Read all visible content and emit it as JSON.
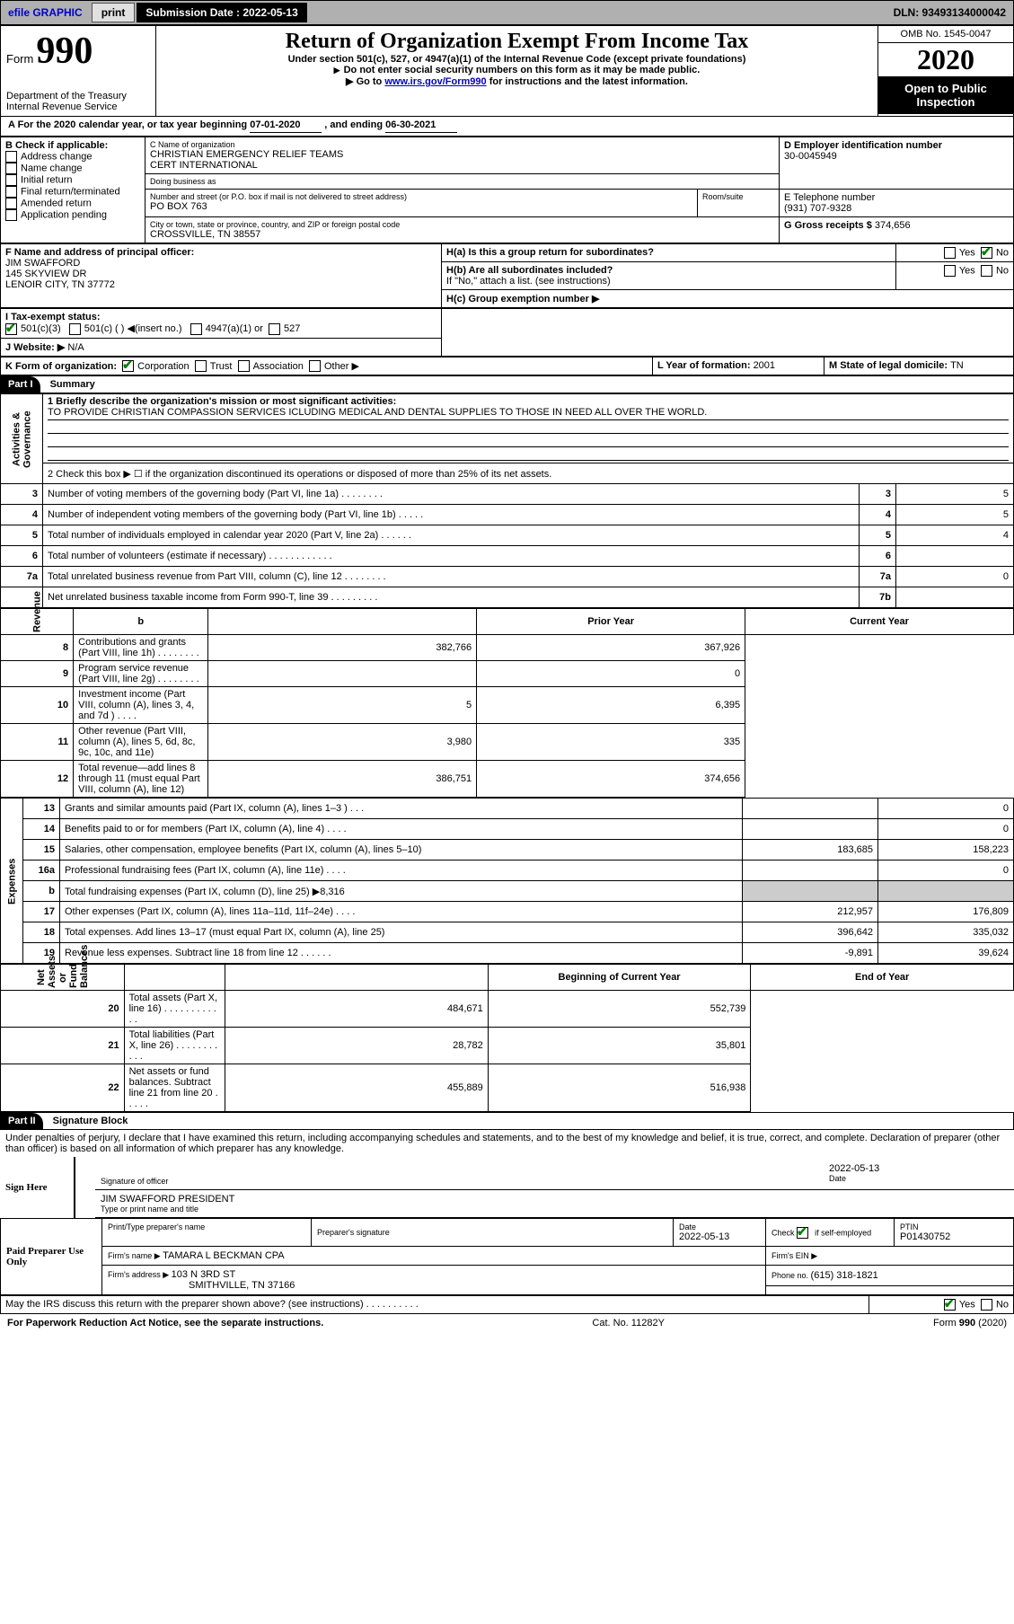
{
  "topbar": {
    "efile": "efile GRAPHIC",
    "print": "print",
    "sub_label": "Submission Date : 2022-05-13",
    "dln": "DLN: 93493134000042"
  },
  "header": {
    "form_word": "Form",
    "form_num": "990",
    "dept": "Department of the Treasury\nInternal Revenue Service",
    "title": "Return of Organization Exempt From Income Tax",
    "subtitle": "Under section 501(c), 527, or 4947(a)(1) of the Internal Revenue Code (except private foundations)",
    "note1": "Do not enter social security numbers on this form as it may be made public.",
    "note2_pre": "Go to ",
    "note2_link": "www.irs.gov/Form990",
    "note2_post": " for instructions and the latest information.",
    "omb": "OMB No. 1545-0047",
    "year": "2020",
    "open": "Open to Public Inspection"
  },
  "rowA": {
    "text_pre": "A For the 2020 calendar year, or tax year beginning ",
    "begin": "07-01-2020",
    "mid": " , and ending ",
    "end": "06-30-2021"
  },
  "boxB": {
    "label": "B Check if applicable:",
    "addr": "Address change",
    "name": "Name change",
    "init": "Initial return",
    "final": "Final return/terminated",
    "amend": "Amended return",
    "app": "Application pending"
  },
  "boxC": {
    "label": "C Name of organization",
    "name": "CHRISTIAN EMERGENCY RELIEF TEAMS\nCERT INTERNATIONAL",
    "dba_label": "Doing business as",
    "dba": "",
    "street_label": "Number and street (or P.O. box if mail is not delivered to street address)",
    "room_label": "Room/suite",
    "street": "PO BOX 763",
    "city_label": "City or town, state or province, country, and ZIP or foreign postal code",
    "city": "CROSSVILLE, TN  38557"
  },
  "boxD": {
    "label": "D Employer identification number",
    "val": "30-0045949"
  },
  "boxE": {
    "label": "E Telephone number",
    "val": "(931) 707-9328"
  },
  "boxG": {
    "label": "G Gross receipts $ ",
    "val": "374,656"
  },
  "boxF": {
    "label": "F Name and address of principal officer:",
    "name": "JIM SWAFFORD",
    "addr1": "145 SKYVIEW DR",
    "addr2": "LENOIR CITY, TN  37772"
  },
  "boxH": {
    "a_label": "H(a)  Is this a group return for subordinates?",
    "b_label": "H(b)  Are all subordinates included?",
    "b_note": "If \"No,\" attach a list. (see instructions)",
    "c_label": "H(c)  Group exemption number ▶",
    "yes": "Yes",
    "no": "No"
  },
  "rowI": {
    "label": "I   Tax-exempt status:",
    "c3": "501(c)(3)",
    "c": "501(c) (  ) ◀(insert no.)",
    "a1": "4947(a)(1) or",
    "s527": "527"
  },
  "rowJ": {
    "label": "J   Website: ▶",
    "val": "N/A"
  },
  "rowK": {
    "label": "K Form of organization:",
    "corp": "Corporation",
    "trust": "Trust",
    "assoc": "Association",
    "other": "Other ▶"
  },
  "rowL": {
    "label": "L Year of formation: ",
    "val": "2001"
  },
  "rowM": {
    "label": "M State of legal domicile: ",
    "val": "TN"
  },
  "part1": {
    "label": "Part I",
    "title": "Summary"
  },
  "summary": {
    "q1_label": "1   Briefly describe the organization's mission or most significant activities:",
    "q1_text": "TO PROVIDE CHRISTIAN COMPASSION SERVICES ICLUDING MEDICAL AND DENTAL SUPPLIES TO THOSE IN NEED ALL OVER THE WORLD.",
    "q2": "2   Check this box ▶ ☐  if the organization discontinued its operations or disposed of more than 25% of its net assets.",
    "rows": [
      {
        "n": "3",
        "d": "Number of voting members of the governing body (Part VI, line 1a)   .    .    .    .    .    .    .    .",
        "box": "3",
        "v": "5"
      },
      {
        "n": "4",
        "d": "Number of independent voting members of the governing body (Part VI, line 1b)   .    .    .    .    .",
        "box": "4",
        "v": "5"
      },
      {
        "n": "5",
        "d": "Total number of individuals employed in calendar year 2020 (Part V, line 2a)   .    .    .    .    .    .",
        "box": "5",
        "v": "4"
      },
      {
        "n": "6",
        "d": "Total number of volunteers (estimate if necessary)   .    .    .    .    .    .    .    .    .    .    .    .",
        "box": "6",
        "v": ""
      },
      {
        "n": "7a",
        "d": "Total unrelated business revenue from Part VIII, column (C), line 12   .    .    .    .    .    .    .    .",
        "box": "7a",
        "v": "0"
      },
      {
        "n": "",
        "d": "Net unrelated business taxable income from Form 990-T, line 39   .    .    .    .    .    .    .    .    .",
        "box": "7b",
        "v": ""
      }
    ]
  },
  "fin_headers": {
    "b": "b",
    "prior": "Prior Year",
    "current": "Current Year"
  },
  "revenue": [
    {
      "n": "8",
      "d": "Contributions and grants (Part VIII, line 1h)   .    .    .    .    .    .    .    .",
      "p": "382,766",
      "c": "367,926"
    },
    {
      "n": "9",
      "d": "Program service revenue (Part VIII, line 2g)   .    .    .    .    .    .    .    .",
      "p": "",
      "c": "0"
    },
    {
      "n": "10",
      "d": "Investment income (Part VIII, column (A), lines 3, 4, and 7d )   .    .    .    .",
      "p": "5",
      "c": "6,395"
    },
    {
      "n": "11",
      "d": "Other revenue (Part VIII, column (A), lines 5, 6d, 8c, 9c, 10c, and 11e)",
      "p": "3,980",
      "c": "335"
    },
    {
      "n": "12",
      "d": "Total revenue—add lines 8 through 11 (must equal Part VIII, column (A), line 12)",
      "p": "386,751",
      "c": "374,656"
    }
  ],
  "expenses": [
    {
      "n": "13",
      "d": "Grants and similar amounts paid (Part IX, column (A), lines 1–3 )   .    .    .",
      "p": "",
      "c": "0"
    },
    {
      "n": "14",
      "d": "Benefits paid to or for members (Part IX, column (A), line 4)   .    .    .    .",
      "p": "",
      "c": "0"
    },
    {
      "n": "15",
      "d": "Salaries, other compensation, employee benefits (Part IX, column (A), lines 5–10)",
      "p": "183,685",
      "c": "158,223"
    },
    {
      "n": "16a",
      "d": "Professional fundraising fees (Part IX, column (A), line 11e)   .    .    .    .",
      "p": "",
      "c": "0"
    },
    {
      "n": "b",
      "d": "Total fundraising expenses (Part IX, column (D), line 25) ▶8,316",
      "p": "shade",
      "c": "shade"
    },
    {
      "n": "17",
      "d": "Other expenses (Part IX, column (A), lines 11a–11d, 11f–24e)   .    .    .    .",
      "p": "212,957",
      "c": "176,809"
    },
    {
      "n": "18",
      "d": "Total expenses. Add lines 13–17 (must equal Part IX, column (A), line 25)",
      "p": "396,642",
      "c": "335,032"
    },
    {
      "n": "19",
      "d": "Revenue less expenses. Subtract line 18 from line 12   .    .    .    .    .    .",
      "p": "-9,891",
      "c": "39,624"
    }
  ],
  "net_headers": {
    "beg": "Beginning of Current Year",
    "end": "End of Year"
  },
  "netassets": [
    {
      "n": "20",
      "d": "Total assets (Part X, line 16)   .    .    .    .    .    .    .    .    .    .    .    .",
      "p": "484,671",
      "c": "552,739"
    },
    {
      "n": "21",
      "d": "Total liabilities (Part X, line 26)   .    .    .    .    .    .    .    .    .    .    .",
      "p": "28,782",
      "c": "35,801"
    },
    {
      "n": "22",
      "d": "Net assets or fund balances. Subtract line 21 from line 20   .    .    .    .    .",
      "p": "455,889",
      "c": "516,938"
    }
  ],
  "sidelabels": {
    "ag": "Activities & Governance",
    "rev": "Revenue",
    "exp": "Expenses",
    "net": "Net Assets or\nFund Balances"
  },
  "part2": {
    "label": "Part II",
    "title": "Signature Block"
  },
  "sig": {
    "declare": "Under penalties of perjury, I declare that I have examined this return, including accompanying schedules and statements, and to the best of my knowledge and belief, it is true, correct, and complete. Declaration of preparer (other than officer) is based on all information of which preparer has any knowledge.",
    "sign_here": "Sign Here",
    "sig_officer": "Signature of officer",
    "date_label": "Date",
    "date_val": "2022-05-13",
    "name": "JIM SWAFFORD PRESIDENT",
    "name_label": "Type or print name and title",
    "paid": "Paid Preparer Use Only",
    "prep_name_label": "Print/Type preparer's name",
    "prep_sig_label": "Preparer's signature",
    "prep_date": "2022-05-13",
    "check_label": "Check ",
    "self_emp": " if self-employed",
    "ptin_label": "PTIN",
    "ptin": "P01430752",
    "firm_name_label": "Firm's name    ▶ ",
    "firm_name": "TAMARA L BECKMAN CPA",
    "firm_ein_label": "Firm's EIN ▶",
    "firm_addr_label": "Firm's address ▶ ",
    "firm_addr1": "103 N 3RD ST",
    "firm_addr2": "SMITHVILLE, TN  37166",
    "phone_label": "Phone no. ",
    "phone": "(615) 318-1821",
    "discuss": "May the IRS discuss this return with the preparer shown above? (see instructions)   .    .    .    .    .    .    .    .    .    .",
    "yes": "Yes",
    "no": "No"
  },
  "footer": {
    "pra": "For Paperwork Reduction Act Notice, see the separate instructions.",
    "cat": "Cat. No. 11282Y",
    "form": "Form 990 (2020)"
  },
  "colors": {
    "shade": "#cccccc",
    "link": "#0000cc",
    "check": "#008000"
  }
}
